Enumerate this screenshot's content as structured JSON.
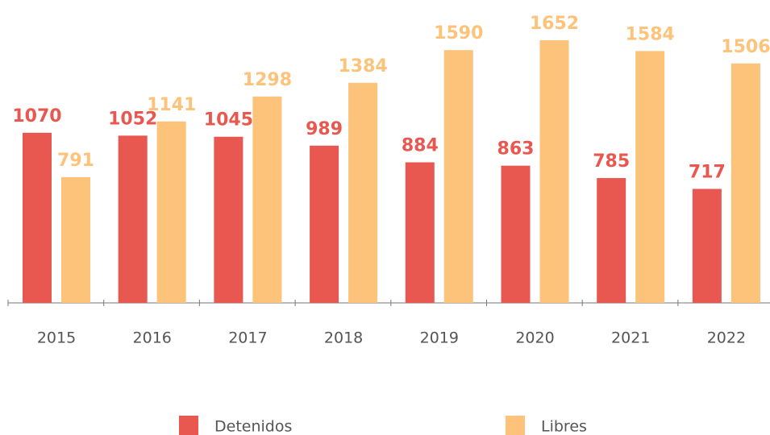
{
  "chart_data": {
    "type": "bar",
    "categories": [
      "2015",
      "2016",
      "2017",
      "2018",
      "2019",
      "2020",
      "2021",
      "2022"
    ],
    "series": [
      {
        "name": "Detenidos",
        "color": "#e85850",
        "values": [
          1070,
          1052,
          1045,
          989,
          884,
          863,
          785,
          717
        ]
      },
      {
        "name": "Libres",
        "color": "#fdc37a",
        "values": [
          791,
          1141,
          1298,
          1384,
          1590,
          1652,
          1584,
          1506
        ]
      }
    ],
    "ylim": [
      0,
      1905
    ]
  }
}
